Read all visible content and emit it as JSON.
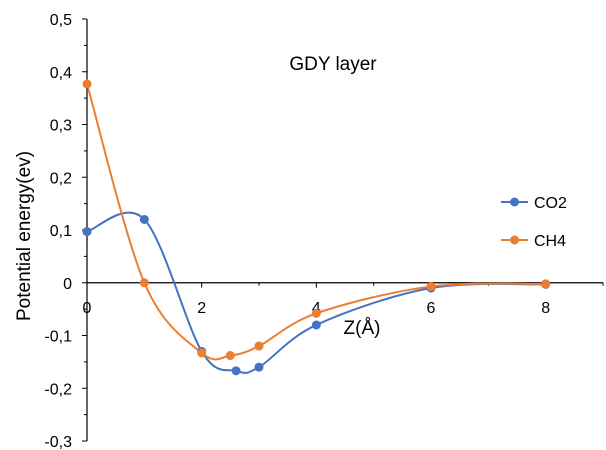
{
  "chart_data": {
    "type": "line",
    "title": "GDY layer",
    "xlabel": "Z(Å)",
    "ylabel": "Potential energy(ev)",
    "xlim": [
      0,
      9
    ],
    "ylim": [
      -0.3,
      0.5
    ],
    "x_ticks": [
      0,
      2,
      4,
      6,
      8
    ],
    "y_ticks": [
      -0.3,
      -0.2,
      -0.1,
      0,
      0.1,
      0.2,
      0.3,
      0.4,
      0.5
    ],
    "x_tick_labels": [
      "0",
      "2",
      "4",
      "6",
      "8"
    ],
    "y_tick_labels": [
      "-0,3",
      "-0,2",
      "-0,1",
      "0",
      "0,1",
      "0,2",
      "0,3",
      "0,4",
      "0,5"
    ],
    "smooth": true,
    "grid": false,
    "legend_position": "right",
    "series": [
      {
        "name": "CO2",
        "color": "#4472C4",
        "x": [
          0,
          1,
          2,
          2.6,
          3,
          4,
          6,
          8
        ],
        "y": [
          0.097,
          0.12,
          -0.13,
          -0.167,
          -0.16,
          -0.08,
          -0.01,
          -0.003
        ]
      },
      {
        "name": "CH4",
        "color": "#ED7D31",
        "x": [
          0,
          1,
          2,
          2.5,
          3,
          4,
          6,
          8
        ],
        "y": [
          0.377,
          0.0,
          -0.133,
          -0.138,
          -0.12,
          -0.058,
          -0.007,
          -0.002
        ]
      }
    ]
  }
}
